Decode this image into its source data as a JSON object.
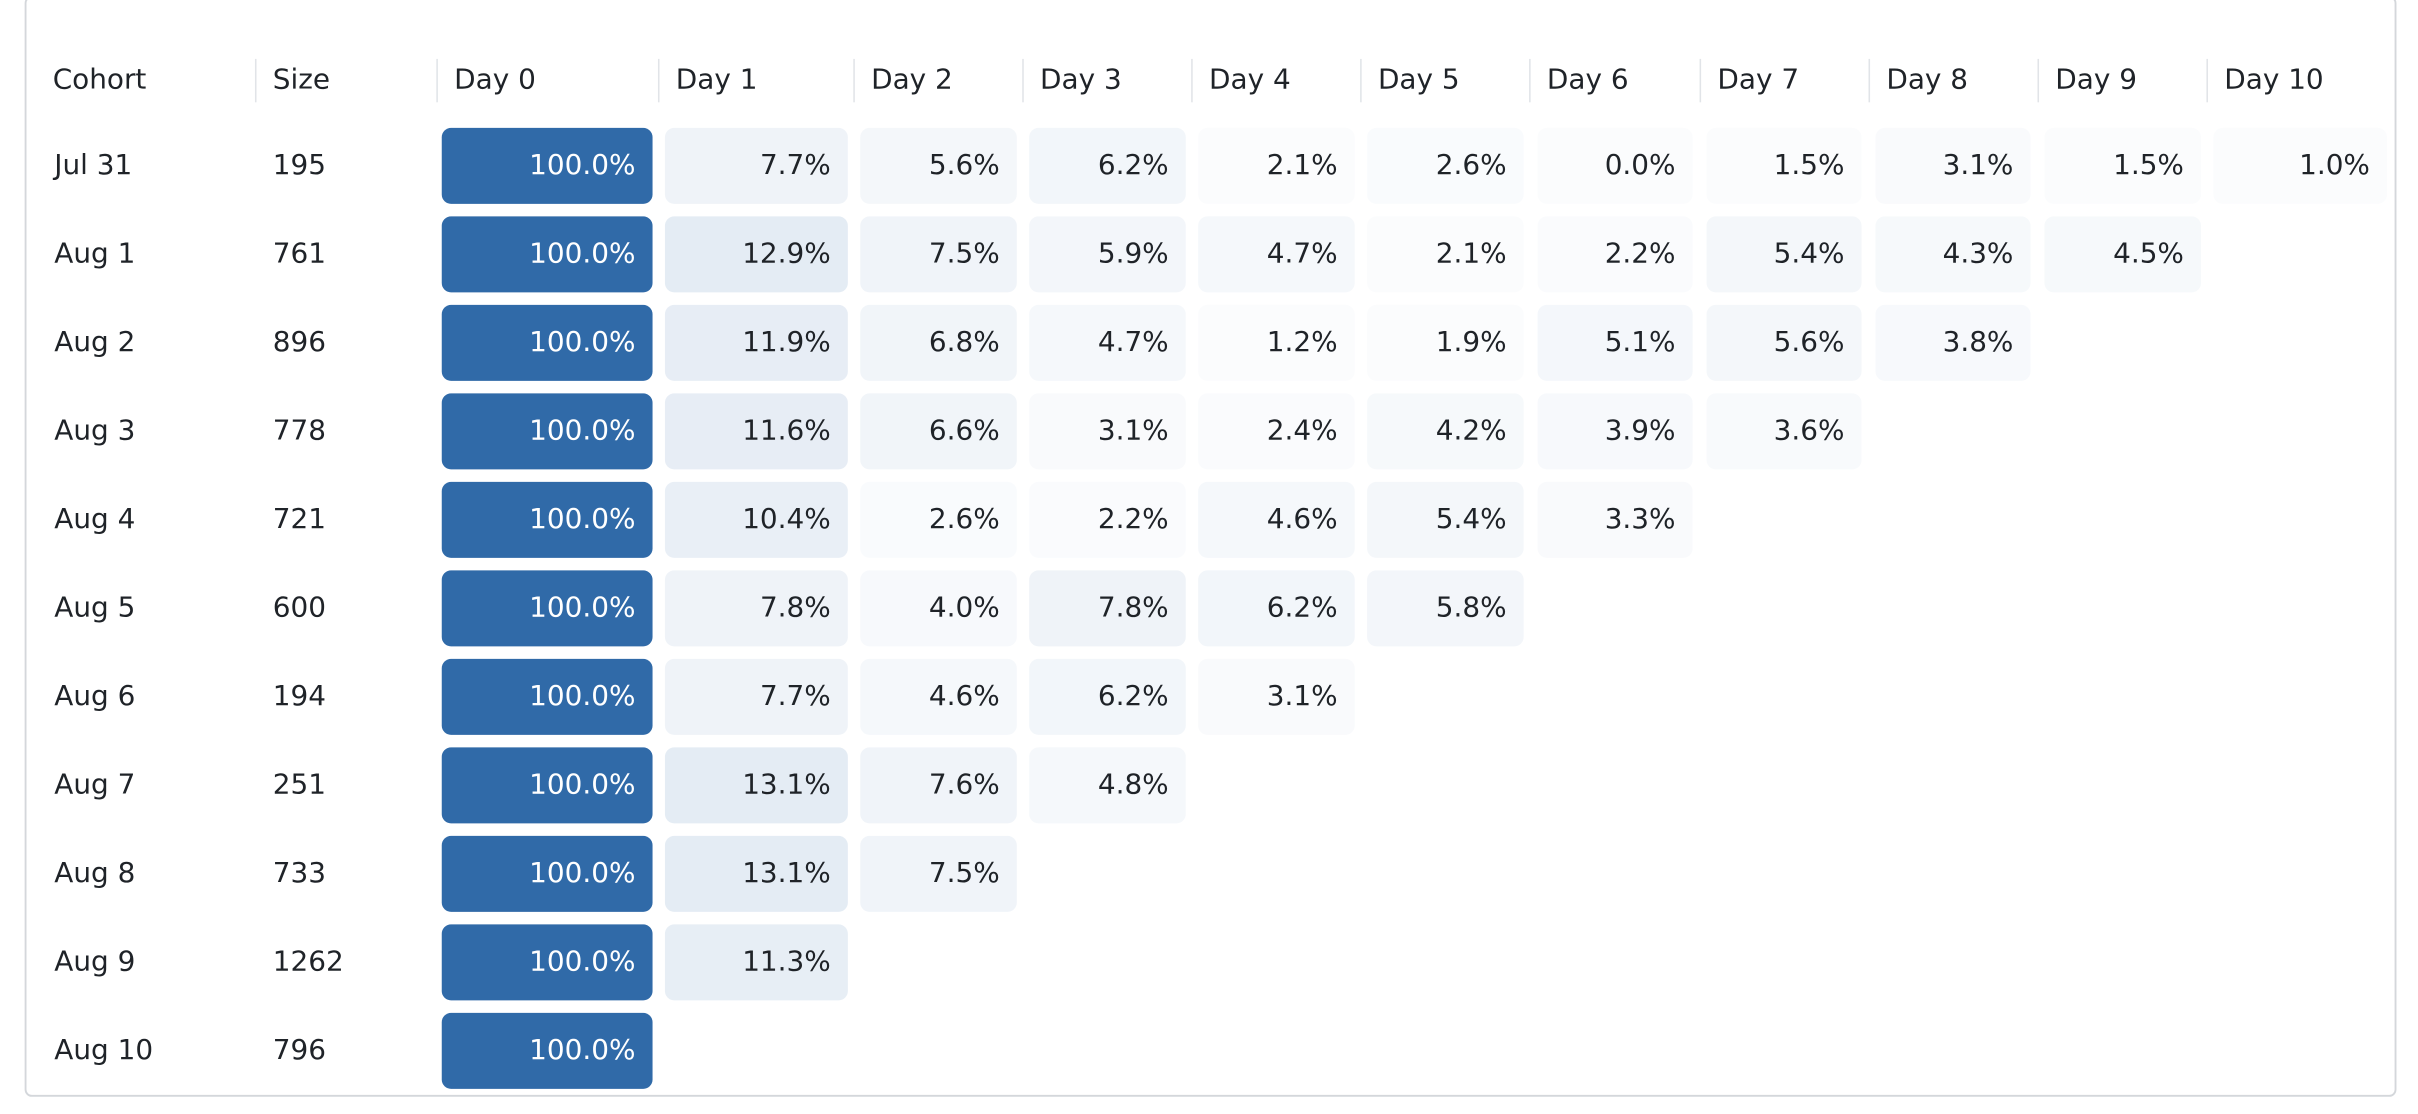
{
  "table": {
    "columns": [
      "Cohort",
      "Size",
      "Day 0",
      "Day 1",
      "Day 2",
      "Day 3",
      "Day 4",
      "Day 5",
      "Day 6",
      "Day 7",
      "Day 8",
      "Day 9",
      "Day 10"
    ],
    "rows": [
      [
        "Jul 31",
        "195",
        "100.0%",
        "7.7%",
        "5.6%",
        "6.2%",
        "2.1%",
        "2.6%",
        "0.0%",
        "1.5%",
        "3.1%",
        "1.5%",
        "1.0%"
      ],
      [
        "Aug 1",
        "761",
        "100.0%",
        "12.9%",
        "7.5%",
        "5.9%",
        "4.7%",
        "2.1%",
        "2.2%",
        "5.4%",
        "4.3%",
        "4.5%"
      ],
      [
        "Aug 2",
        "896",
        "100.0%",
        "11.9%",
        "6.8%",
        "4.7%",
        "1.2%",
        "1.9%",
        "5.1%",
        "5.6%",
        "3.8%"
      ],
      [
        "Aug 3",
        "778",
        "100.0%",
        "11.6%",
        "6.6%",
        "3.1%",
        "2.4%",
        "4.2%",
        "3.9%",
        "3.6%"
      ],
      [
        "Aug 4",
        "721",
        "100.0%",
        "10.4%",
        "2.6%",
        "2.2%",
        "4.6%",
        "5.4%",
        "3.3%"
      ],
      [
        "Aug 5",
        "600",
        "100.0%",
        "7.8%",
        "4.0%",
        "7.8%",
        "6.2%",
        "5.8%"
      ],
      [
        "Aug 6",
        "194",
        "100.0%",
        "7.7%",
        "4.6%",
        "6.2%",
        "3.1%"
      ],
      [
        "Aug 7",
        "251",
        "100.0%",
        "13.1%",
        "7.6%",
        "4.8%"
      ],
      [
        "Aug 8",
        "733",
        "100.0%",
        "13.1%",
        "7.5%"
      ],
      [
        "Aug 9",
        "1262",
        "100.0%",
        "11.3%"
      ],
      [
        "Aug 10",
        "796",
        "100.0%"
      ]
    ]
  }
}
